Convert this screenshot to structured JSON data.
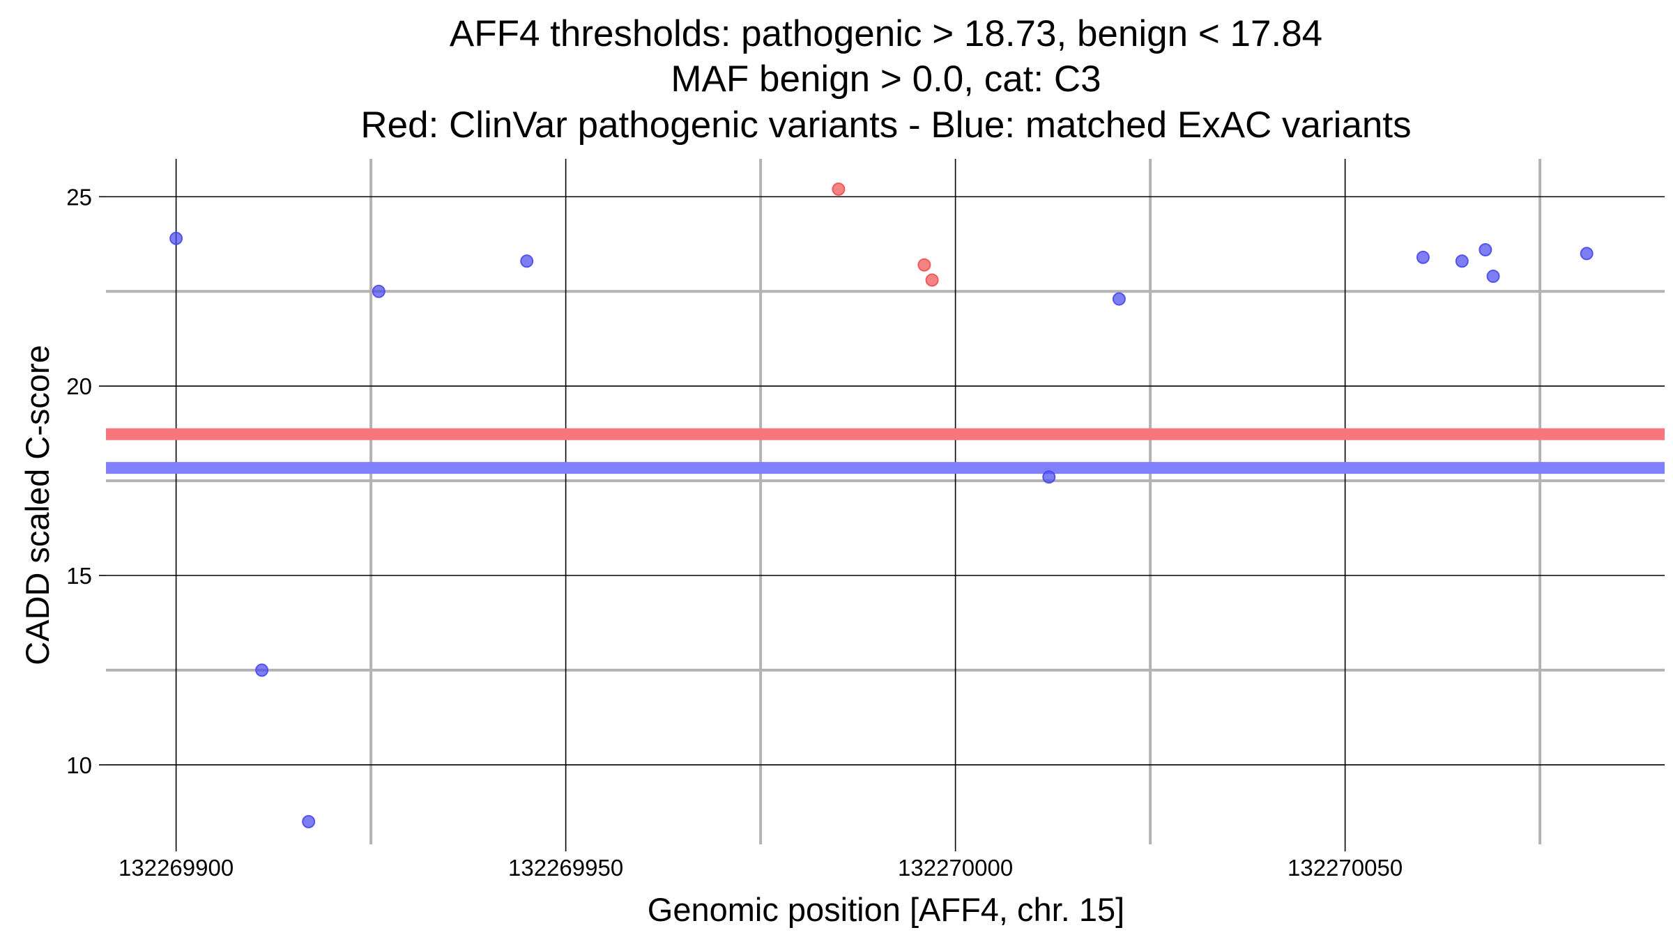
{
  "chart_data": {
    "type": "scatter",
    "title_lines": [
      "AFF4 thresholds: pathogenic > 18.73, benign < 17.84",
      "MAF benign > 0.0, cat: C3",
      "Red: ClinVar pathogenic variants - Blue: matched ExAC variants"
    ],
    "xlabel": "Genomic position [AFF4, chr. 15]",
    "ylabel": "CADD scaled C-score",
    "xlim": [
      132269891,
      132270091
    ],
    "ylim": [
      7.9,
      26.0
    ],
    "x_ticks": [
      {
        "value": 132269900,
        "label": "132269900"
      },
      {
        "value": 132269950,
        "label": "132269950"
      },
      {
        "value": 132270000,
        "label": "132270000"
      },
      {
        "value": 132270050,
        "label": "132270050"
      }
    ],
    "x_minor_gridlines": [
      132269925,
      132269975,
      132270025,
      132270075
    ],
    "y_ticks": [
      {
        "value": 10,
        "label": "10"
      },
      {
        "value": 15,
        "label": "15"
      },
      {
        "value": 20,
        "label": "20"
      },
      {
        "value": 25,
        "label": "25"
      }
    ],
    "y_minor_gridlines": [
      12.5,
      17.5,
      22.5
    ],
    "thresholds": [
      {
        "name": "pathogenic",
        "value": 18.73,
        "color": "#f8767d"
      },
      {
        "name": "benign",
        "value": 17.84,
        "color": "#8080ff"
      }
    ],
    "series": [
      {
        "name": "ClinVar pathogenic variants",
        "color": "#f05050",
        "points": [
          {
            "x": 132269985,
            "y": 25.2
          },
          {
            "x": 132269996,
            "y": 23.2
          },
          {
            "x": 132269997,
            "y": 22.8
          }
        ]
      },
      {
        "name": "matched ExAC variants",
        "color": "#4848f0",
        "points": [
          {
            "x": 132269900,
            "y": 23.9
          },
          {
            "x": 132269911,
            "y": 12.5
          },
          {
            "x": 132269917,
            "y": 8.5
          },
          {
            "x": 132269926,
            "y": 22.5
          },
          {
            "x": 132269945,
            "y": 23.3
          },
          {
            "x": 132270012,
            "y": 17.6
          },
          {
            "x": 132270021,
            "y": 22.3
          },
          {
            "x": 132270060,
            "y": 23.4
          },
          {
            "x": 132270065,
            "y": 23.3
          },
          {
            "x": 132270068,
            "y": 23.6
          },
          {
            "x": 132270069,
            "y": 22.9
          },
          {
            "x": 132270081,
            "y": 23.5
          }
        ]
      }
    ]
  }
}
